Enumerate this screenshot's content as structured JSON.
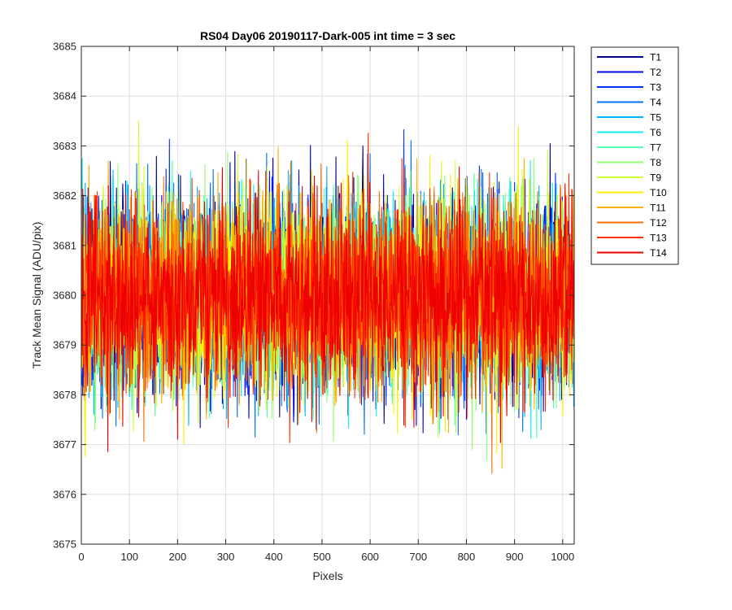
{
  "chart_data": {
    "type": "line",
    "title": "RS04 Day06 20190117-Dark-005 int time = 3 sec",
    "xlabel": "Pixels",
    "ylabel": "Track Mean Signal (ADU/pix)",
    "xlim": [
      0,
      1024
    ],
    "ylim": [
      3675,
      3685
    ],
    "xticks": [
      0,
      100,
      200,
      300,
      400,
      500,
      600,
      700,
      800,
      900,
      1000
    ],
    "yticks": [
      3675,
      3676,
      3677,
      3678,
      3679,
      3680,
      3681,
      3682,
      3683,
      3684,
      3685
    ],
    "grid": true,
    "legend_position": "outside-top-right",
    "n_points": 1024,
    "series": [
      {
        "name": "T1",
        "color": "#00008f",
        "mean": 3680.0,
        "noise_sd": 1.0
      },
      {
        "name": "T2",
        "color": "#0000df",
        "mean": 3680.0,
        "noise_sd": 1.0
      },
      {
        "name": "T3",
        "color": "#0030ff",
        "mean": 3680.0,
        "noise_sd": 1.0
      },
      {
        "name": "T4",
        "color": "#0070ff",
        "mean": 3680.0,
        "noise_sd": 1.0
      },
      {
        "name": "T5",
        "color": "#00b0ff",
        "mean": 3680.0,
        "noise_sd": 1.0
      },
      {
        "name": "T6",
        "color": "#10f0ef",
        "mean": 3680.0,
        "noise_sd": 1.0
      },
      {
        "name": "T7",
        "color": "#50ffaf",
        "mean": 3680.0,
        "noise_sd": 1.0
      },
      {
        "name": "T8",
        "color": "#8fff70",
        "mean": 3680.0,
        "noise_sd": 1.0
      },
      {
        "name": "T9",
        "color": "#cfff30",
        "mean": 3680.0,
        "noise_sd": 1.0
      },
      {
        "name": "T10",
        "color": "#ffef00",
        "mean": 3680.0,
        "noise_sd": 1.0
      },
      {
        "name": "T11",
        "color": "#ffaf00",
        "mean": 3680.0,
        "noise_sd": 1.0
      },
      {
        "name": "T12",
        "color": "#ff7000",
        "mean": 3680.0,
        "noise_sd": 1.0
      },
      {
        "name": "T13",
        "color": "#ff3000",
        "mean": 3680.0,
        "noise_sd": 1.0
      },
      {
        "name": "T14",
        "color": "#ef0000",
        "mean": 3680.0,
        "noise_sd": 1.0
      }
    ]
  }
}
